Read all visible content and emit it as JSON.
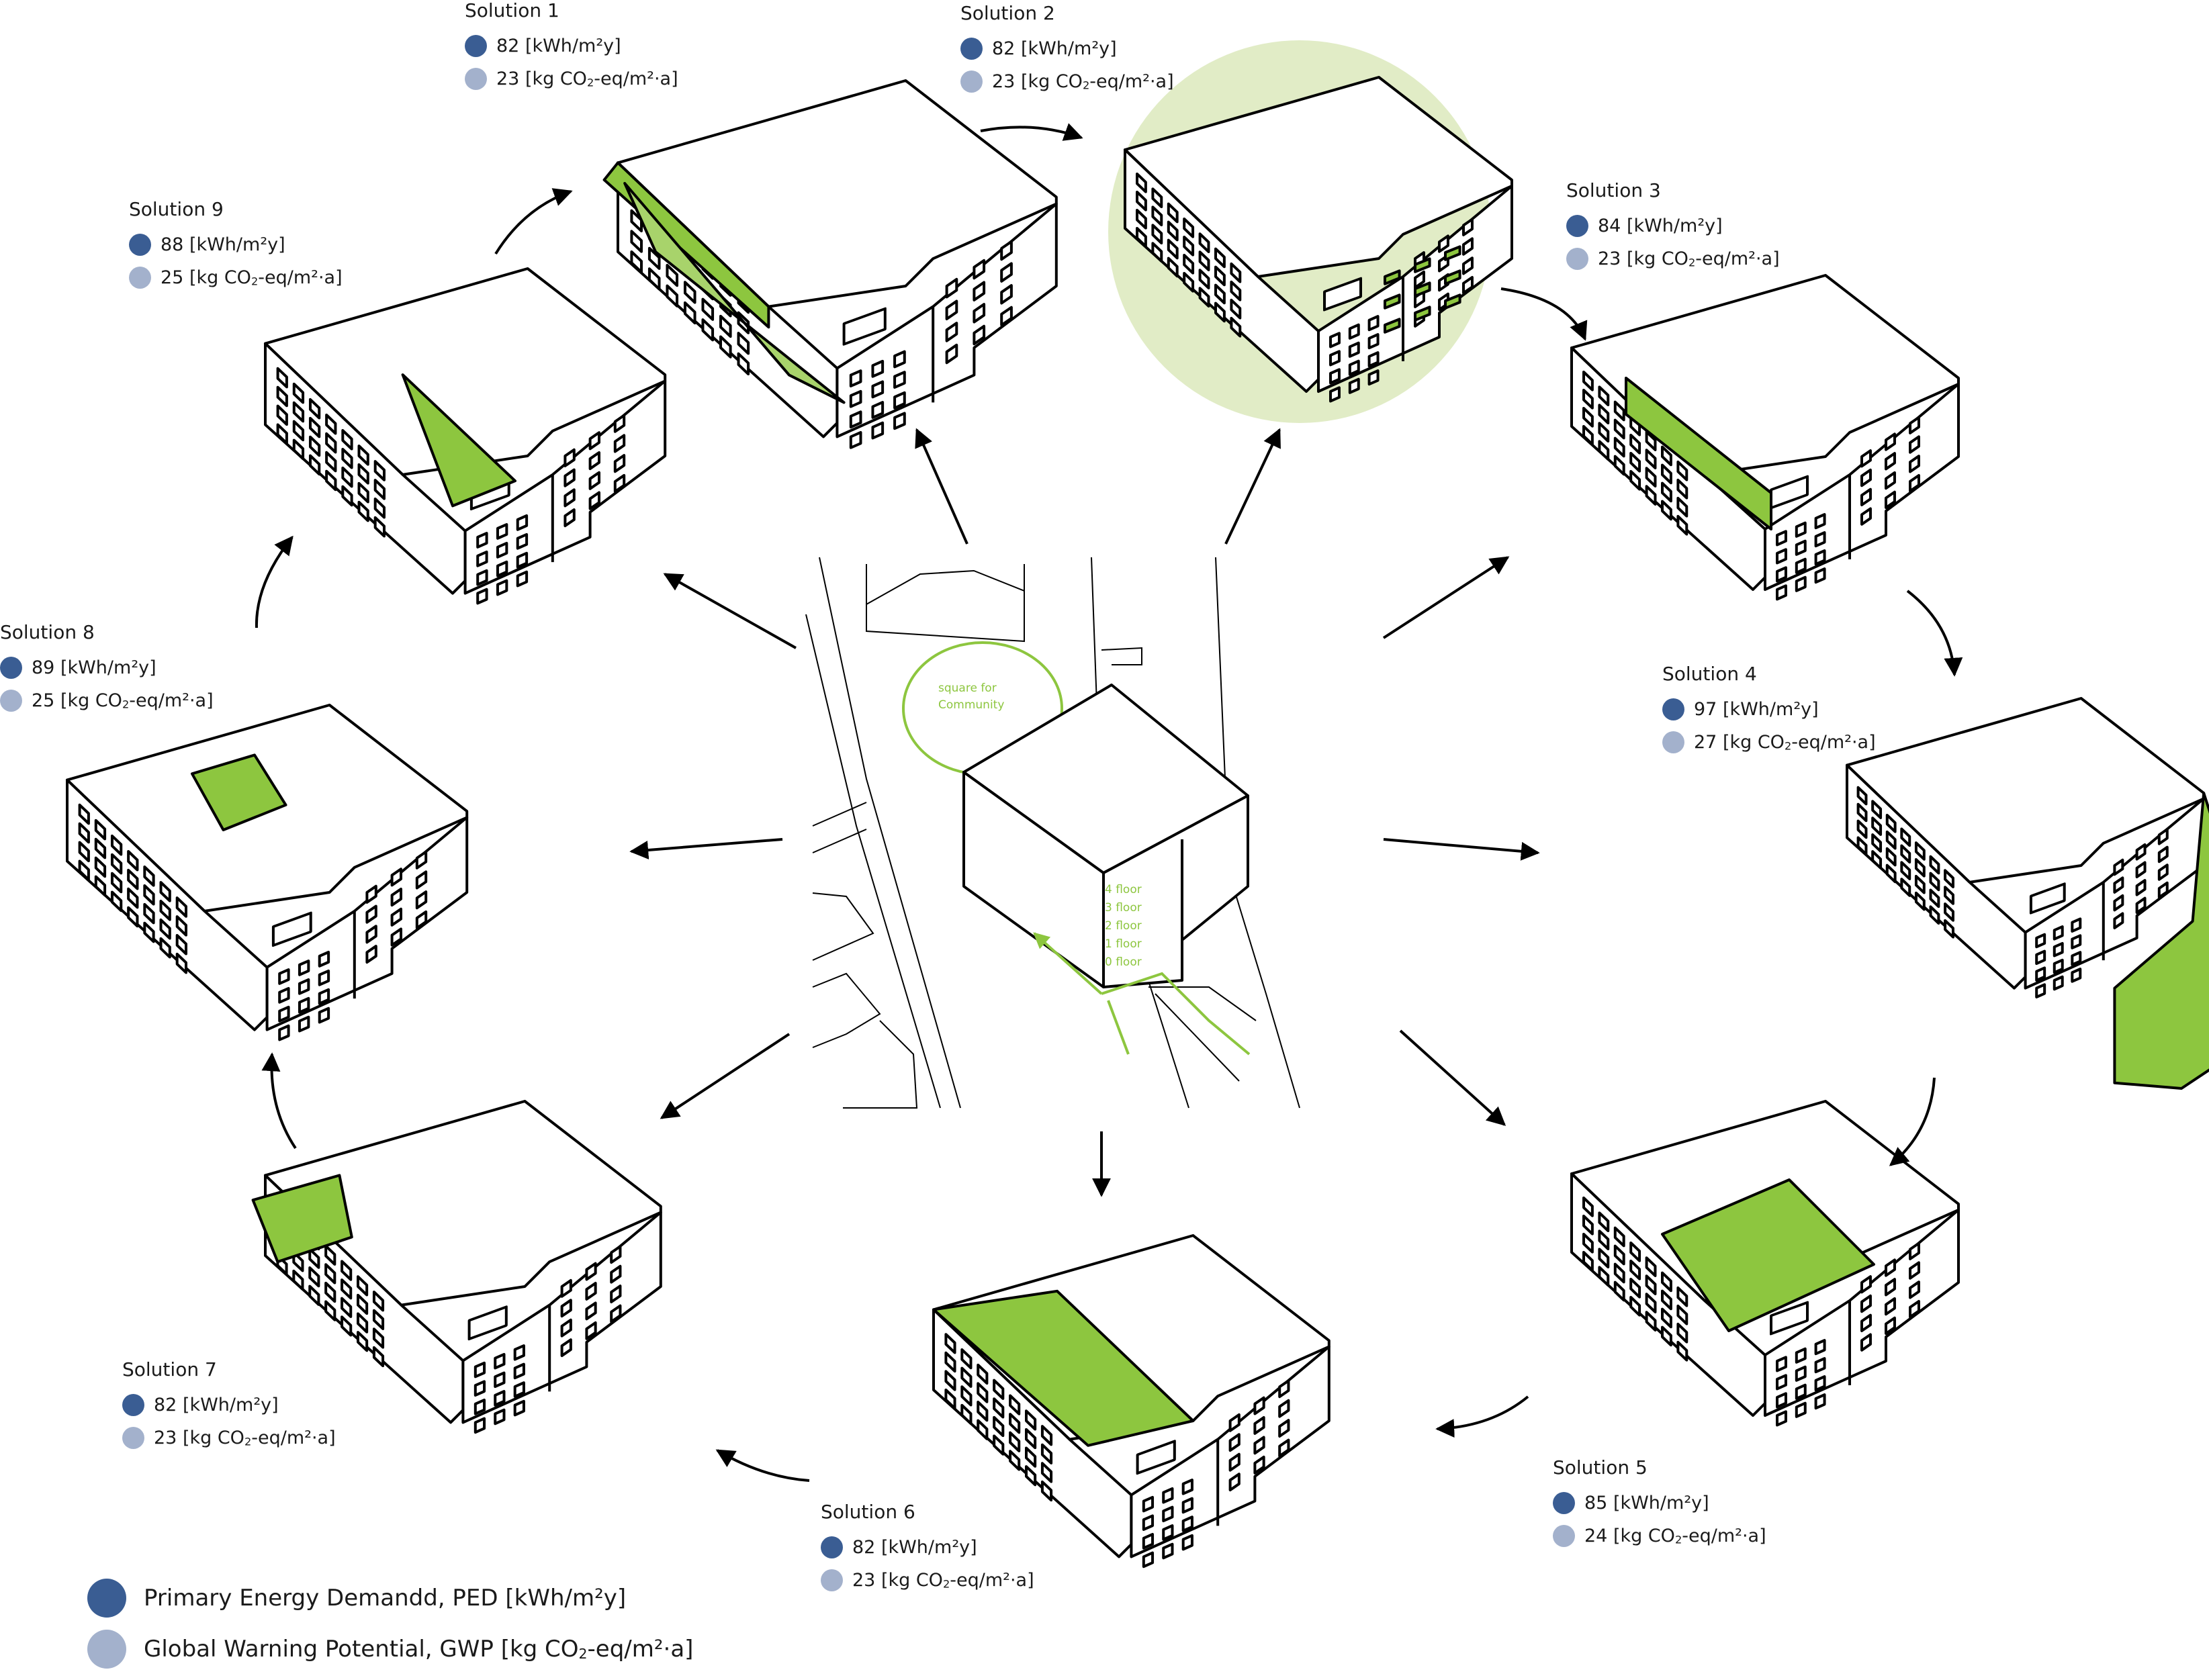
{
  "solutions": [
    {
      "title": "Solution 1",
      "ped": "82 [kWh/m²y]",
      "gwp": [
        "23 [kg CO",
        "2",
        "-eq/m²·a]"
      ]
    },
    {
      "title": "Solution 2",
      "ped": "82 [kWh/m²y]",
      "gwp": [
        "23 [kg CO",
        "2",
        "-eq/m²·a]"
      ]
    },
    {
      "title": "Solution 3",
      "ped": "84 [kWh/m²y]",
      "gwp": [
        "23 [kg CO",
        "2",
        "-eq/m²·a]"
      ]
    },
    {
      "title": "Solution 4",
      "ped": "97 [kWh/m²y]",
      "gwp": [
        "27 [kg CO",
        "2",
        "-eq/m²·a]"
      ]
    },
    {
      "title": "Solution 5",
      "ped": "85 [kWh/m²y]",
      "gwp": [
        "24 [kg CO",
        "2",
        "-eq/m²·a]"
      ]
    },
    {
      "title": "Solution 6",
      "ped": "82 [kWh/m²y]",
      "gwp": [
        "23 [kg CO",
        "2",
        "-eq/m²·a]"
      ]
    },
    {
      "title": "Solution 7",
      "ped": "82 [kWh/m²y]",
      "gwp": [
        "23 [kg CO",
        "2",
        "-eq/m²·a]"
      ]
    },
    {
      "title": "Solution 8",
      "ped": "89 [kWh/m²y]",
      "gwp": [
        "25 [kg CO",
        "2",
        "-eq/m²·a]"
      ]
    },
    {
      "title": "Solution 9",
      "ped": "88 [kWh/m²y]",
      "gwp": [
        "25 [kg CO",
        "2",
        "-eq/m²·a]"
      ]
    }
  ],
  "center": {
    "square_label": [
      "square for",
      "Community"
    ],
    "floors": [
      "4 floor",
      "3 floor",
      "2 floor",
      "1 floor",
      "0 floor"
    ]
  },
  "legend": {
    "ped": "Primary Energy Demandd, PED [kWh/m²y]",
    "gwp": [
      "Global Warning Potential, GWP [kg CO",
      "2",
      "-eq/m²·a]"
    ]
  },
  "colors": {
    "green": "#8dc63f",
    "light_green": "#a8d36b",
    "circle_bg": "#e1ecc6",
    "ped_dot": "#3a5d93",
    "gwp_dot": "#a3b1cc",
    "line": "#000000"
  }
}
